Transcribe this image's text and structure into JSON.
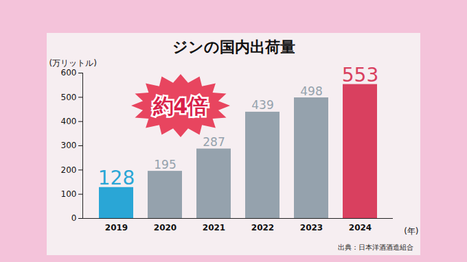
{
  "chart_data": {
    "type": "bar",
    "title": "ジンの国内出荷量",
    "y_label": "(万リットル)",
    "x_label": "(年)",
    "source": "出典：日本洋酒酒造組合",
    "annotation": "約4倍",
    "categories": [
      "2019",
      "2020",
      "2021",
      "2022",
      "2023",
      "2024"
    ],
    "values": [
      128,
      195,
      287,
      439,
      498,
      553
    ],
    "colors": [
      "#2aa6d6",
      "#95a2ad",
      "#95a2ad",
      "#95a2ad",
      "#95a2ad",
      "#d9405f"
    ],
    "ylim": [
      0,
      600
    ],
    "yticks": [
      0,
      100,
      200,
      300,
      400,
      500,
      600
    ],
    "grid": false,
    "data_labels": true
  }
}
